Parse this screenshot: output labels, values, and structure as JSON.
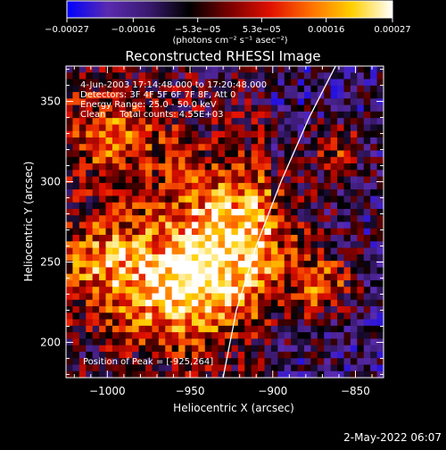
{
  "chart_data": {
    "type": "heatmap",
    "title": "Reconstructed RHESSI Image",
    "xlabel": "Heliocentric X (arcsec)",
    "ylabel": "Heliocentric Y (arcsec)",
    "xlim": [
      -1025,
      -833
    ],
    "ylim": [
      178,
      372
    ],
    "x_ticks": [
      -1000,
      -950,
      -900,
      -850
    ],
    "y_ticks": [
      200,
      250,
      300,
      350
    ],
    "x_tick_labels": [
      "−1000",
      "−950",
      "−900",
      "−850"
    ],
    "y_tick_labels": [
      "200",
      "250",
      "300",
      "350"
    ],
    "colorbar": {
      "ticks": [
        -0.00027,
        -0.00016,
        -5.3e-05,
        5.3e-05,
        0.00016,
        0.00027
      ],
      "tick_labels": [
        "−0.00027",
        "−0.00016",
        "−5.3e−05",
        "5.3e−05",
        "0.00016",
        "0.00027"
      ],
      "range": [
        -0.00027,
        0.00027
      ],
      "unit": "(photons cm⁻² s⁻¹ asec⁻²)",
      "colors": [
        "#0000ff",
        "#5a2bb0",
        "#3a1a70",
        "#000000",
        "#7a0000",
        "#e01000",
        "#ff7000",
        "#ffd000",
        "#ffffff"
      ]
    },
    "annotations": [
      "4-Jun-2003 17:14:48.000 to 17:20:48.000",
      "Detectors: 3F 4F 5F 6F 7F 8F, Att 0",
      "Energy Range: 25.0 - 50.0 keV",
      "Clean     Total counts: 4.55E+03",
      "Position of Peak = [-925,264]"
    ],
    "limb_points_arcsec": [
      [
        -930,
        178
      ],
      [
        -922,
        220
      ],
      [
        -910,
        260
      ],
      [
        -895,
        300
      ],
      [
        -878,
        340
      ],
      [
        -862,
        372
      ]
    ],
    "timestamp": "2-May-2022 06:07"
  }
}
